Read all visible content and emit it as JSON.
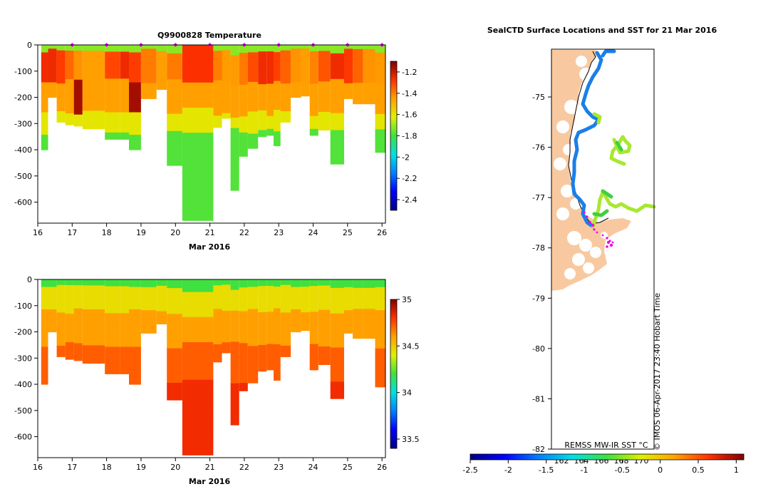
{
  "chart_data": [
    {
      "type": "heatmap",
      "title": "Q9900828  Temperature",
      "xlabel": "Mar 2016",
      "ylabel": "",
      "x_ticks": [
        "16",
        "17",
        "18",
        "19",
        "20",
        "21",
        "22",
        "23",
        "24",
        "25",
        "26"
      ],
      "y_ticks": [
        "0",
        "-100",
        "-200",
        "-300",
        "-400",
        "-500",
        "-600"
      ],
      "xlim": [
        16,
        26.1
      ],
      "ylim": [
        -680,
        0
      ],
      "colorbar": {
        "ticks": [
          "-1.2",
          "-1.4",
          "-1.6",
          "-1.8",
          "-2",
          "-2.2",
          "-2.4"
        ],
        "range": [
          -2.5,
          -1.1
        ]
      },
      "surface_markers_day": [
        17,
        18,
        19,
        20,
        21,
        22,
        23,
        24,
        25,
        26
      ],
      "profiles": [
        {
          "t": 16.1,
          "depth": 400
        },
        {
          "t": 16.3,
          "depth": 200
        },
        {
          "t": 16.55,
          "depth": 295
        },
        {
          "t": 16.8,
          "depth": 305
        },
        {
          "t": 17.05,
          "depth": 310
        },
        {
          "t": 17.3,
          "depth": 320
        },
        {
          "t": 17.95,
          "depth": 360
        },
        {
          "t": 18.4,
          "depth": 360
        },
        {
          "t": 18.65,
          "depth": 400
        },
        {
          "t": 19.0,
          "depth": 205
        },
        {
          "t": 19.45,
          "depth": 170
        },
        {
          "t": 19.75,
          "depth": 460
        },
        {
          "t": 20.2,
          "depth": 670
        },
        {
          "t": 21.1,
          "depth": 315
        },
        {
          "t": 21.35,
          "depth": 280
        },
        {
          "t": 21.6,
          "depth": 555
        },
        {
          "t": 21.85,
          "depth": 425
        },
        {
          "t": 22.1,
          "depth": 395
        },
        {
          "t": 22.4,
          "depth": 350
        },
        {
          "t": 22.65,
          "depth": 345
        },
        {
          "t": 22.85,
          "depth": 385
        },
        {
          "t": 23.05,
          "depth": 295
        },
        {
          "t": 23.35,
          "depth": 200
        },
        {
          "t": 23.65,
          "depth": 195
        },
        {
          "t": 23.9,
          "depth": 345
        },
        {
          "t": 24.15,
          "depth": 325
        },
        {
          "t": 24.5,
          "depth": 455
        },
        {
          "t": 24.9,
          "depth": 205
        },
        {
          "t": 25.15,
          "depth": 225
        },
        {
          "t": 25.45,
          "depth": 225
        },
        {
          "t": 25.8,
          "depth": 410
        }
      ]
    },
    {
      "type": "heatmap",
      "title": "",
      "xlabel": "Mar 2016",
      "ylabel": "",
      "x_ticks": [
        "16",
        "17",
        "18",
        "19",
        "20",
        "21",
        "22",
        "23",
        "24",
        "25",
        "26"
      ],
      "y_ticks": [
        "0",
        "-100",
        "-200",
        "-300",
        "-400",
        "-500",
        "-600"
      ],
      "xlim": [
        16,
        26.1
      ],
      "ylim": [
        -680,
        0
      ],
      "colorbar": {
        "ticks": [
          "35",
          "34.5",
          "34",
          "33.5"
        ],
        "range": [
          33.4,
          35.0
        ]
      }
    },
    {
      "type": "scatter",
      "title": "SealCTD Surface Locations and SST for 21 Mar 2016",
      "y_ticks": [
        "-75",
        "-76",
        "-77",
        "-78",
        "-79",
        "-80",
        "-81",
        "-82"
      ],
      "ylim": [
        -82,
        -74.05
      ],
      "day_labels": [
        "162",
        "164",
        "166",
        "168",
        "170"
      ],
      "sst_label": "REMSS MW-IR SST °C",
      "credit": "© IMOS 06-Apr-2017 23:40 Hobart Time",
      "colorbar": {
        "ticks": [
          "-2.5",
          "-2",
          "-1.5",
          "-1",
          "-0.5",
          "0",
          "0.5",
          "1"
        ],
        "range": [
          -2.5,
          1.1
        ]
      }
    }
  ],
  "colors": {
    "land": "#f8c9a0",
    "marker": "#ee00ee",
    "frame": "#000000"
  }
}
